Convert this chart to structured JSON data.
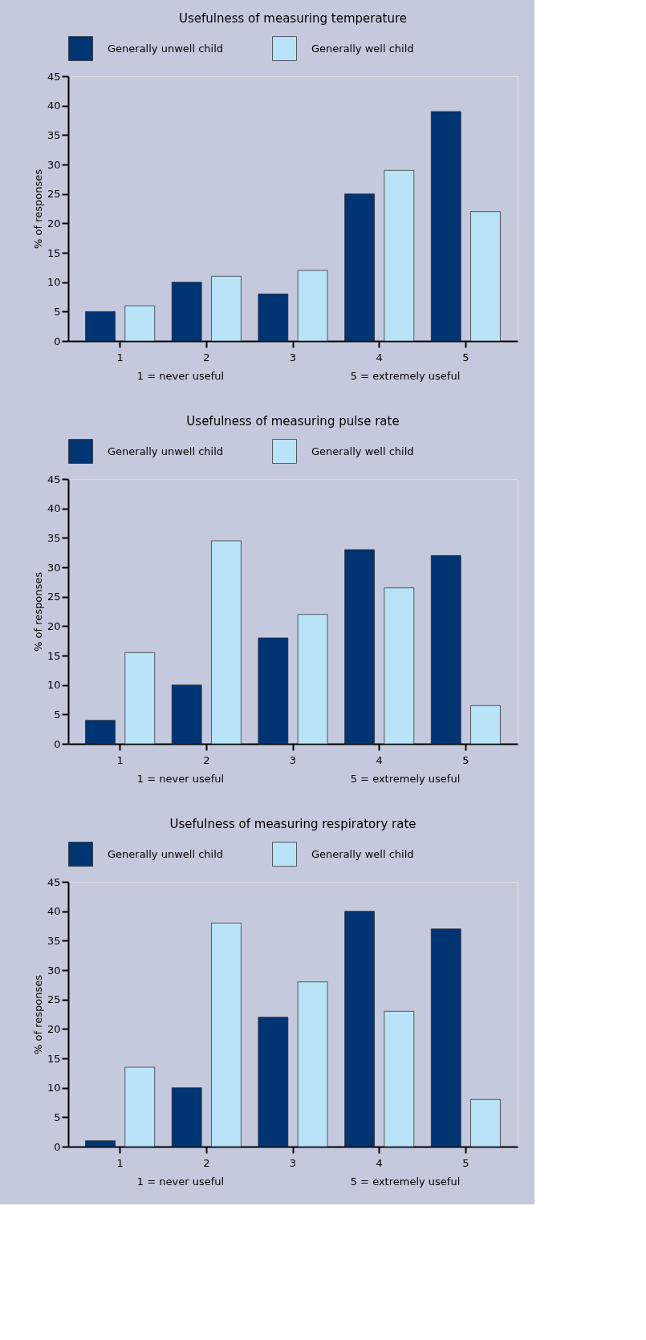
{
  "chart_data": [
    {
      "type": "bar",
      "title": "Usefulness of measuring temperature",
      "ylabel": "% of responses",
      "categories": [
        "1",
        "2",
        "3",
        "4",
        "5"
      ],
      "series": [
        {
          "name": "Generally unwell child",
          "color": "#003574",
          "values": [
            5,
            10,
            8,
            25,
            39
          ]
        },
        {
          "name": "Generally well child",
          "color": "#b9e3f7",
          "values": [
            6,
            11,
            12,
            29,
            22
          ]
        }
      ],
      "ylim": [
        0,
        45
      ],
      "yticks": [
        0,
        5,
        10,
        15,
        20,
        25,
        30,
        35,
        40,
        45
      ],
      "grid": false,
      "legend": "top",
      "annotations": [
        "1 = never useful",
        "5 = extremely useful"
      ]
    },
    {
      "type": "bar",
      "title": "Usefulness of measuring pulse rate",
      "ylabel": "% of responses",
      "categories": [
        "1",
        "2",
        "3",
        "4",
        "5"
      ],
      "series": [
        {
          "name": "Generally unwell child",
          "color": "#003574",
          "values": [
            4,
            10,
            18,
            33,
            32
          ]
        },
        {
          "name": "Generally well child",
          "color": "#b9e3f7",
          "values": [
            15.5,
            34.5,
            22,
            26.5,
            6.5
          ]
        }
      ],
      "ylim": [
        0,
        45
      ],
      "yticks": [
        0,
        5,
        10,
        15,
        20,
        25,
        30,
        35,
        40,
        45
      ],
      "grid": false,
      "legend": "top",
      "annotations": [
        "1 = never useful",
        "5 = extremely useful"
      ]
    },
    {
      "type": "bar",
      "title": "Usefulness of measuring respiratory rate",
      "ylabel": "% of responses",
      "categories": [
        "1",
        "2",
        "3",
        "4",
        "5"
      ],
      "series": [
        {
          "name": "Generally unwell child",
          "color": "#003574",
          "values": [
            1,
            10,
            22,
            40,
            37
          ]
        },
        {
          "name": "Generally well child",
          "color": "#b9e3f7",
          "values": [
            13.5,
            38,
            28,
            23,
            8
          ]
        }
      ],
      "ylim": [
        0,
        45
      ],
      "yticks": [
        0,
        5,
        10,
        15,
        20,
        25,
        30,
        35,
        40,
        45
      ],
      "grid": false,
      "legend": "top",
      "annotations": [
        "1 = never useful",
        "5 = extremely useful"
      ]
    }
  ]
}
